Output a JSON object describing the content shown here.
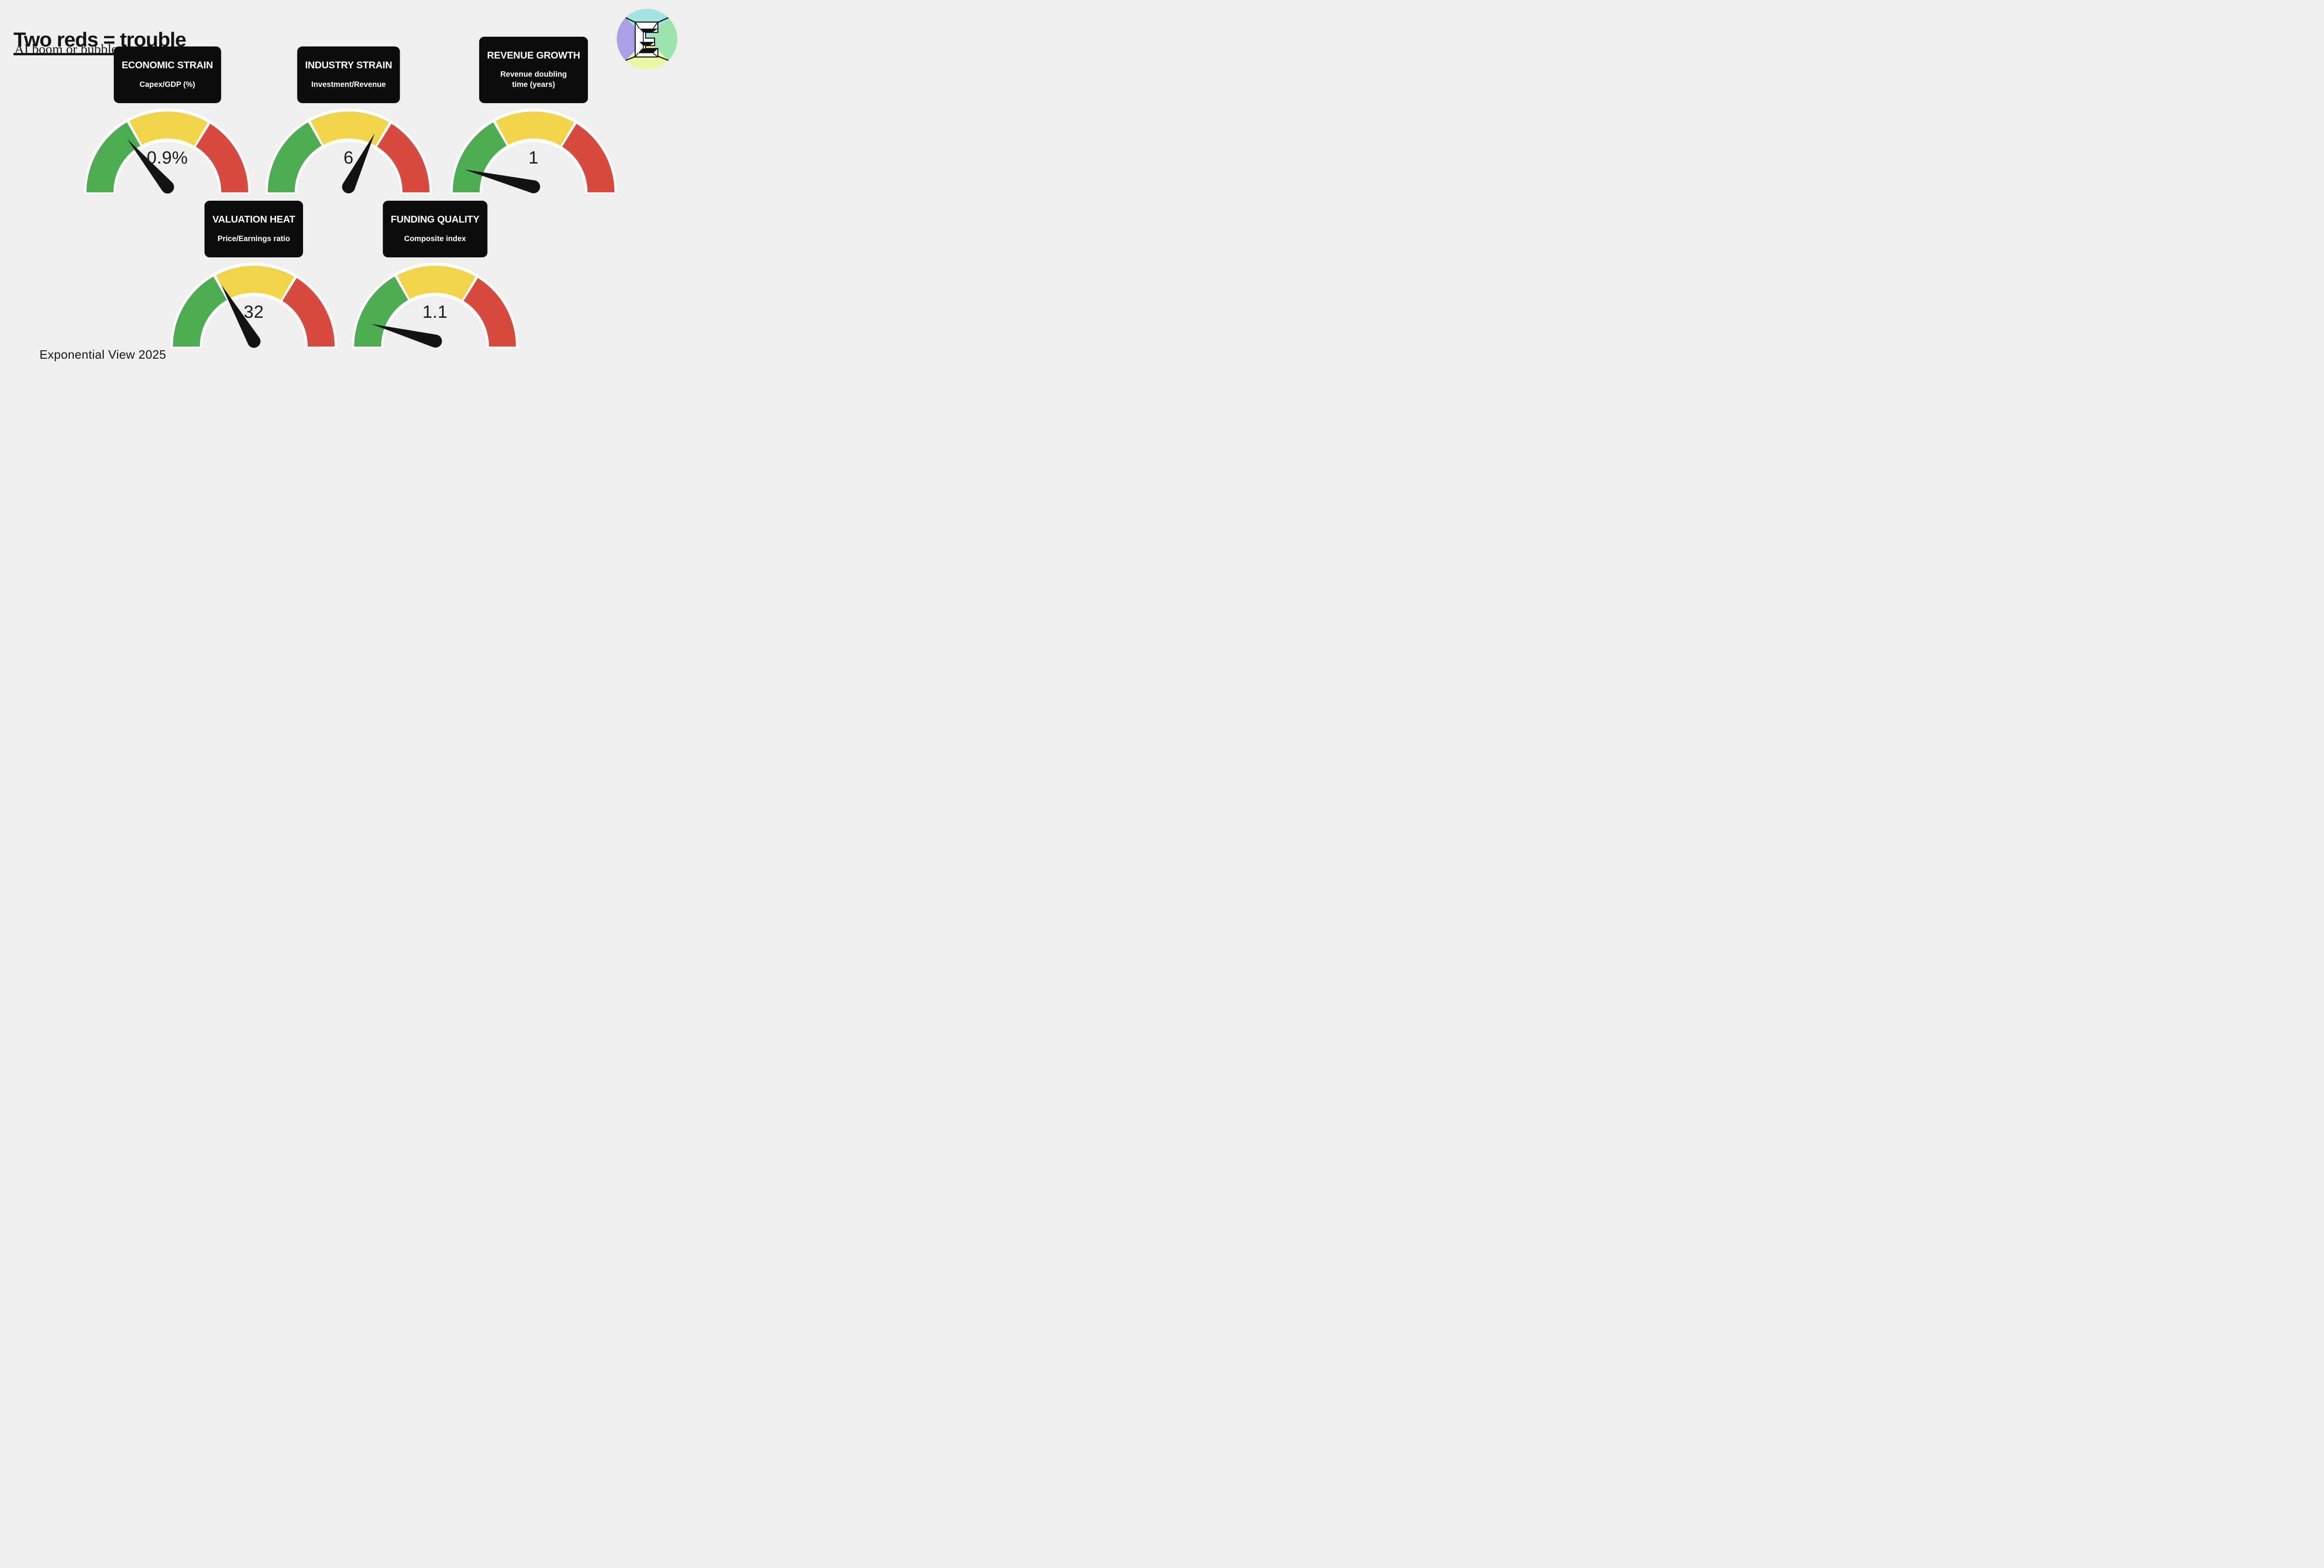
{
  "page": {
    "background": "#f0efed"
  },
  "header": {
    "title": "Two reds = trouble",
    "subtitle": "AI boom or bubble panel"
  },
  "footer": {
    "credit": "Exponential View 2025"
  },
  "logo": {
    "letter": "E",
    "sector_colors": {
      "top": "#a2e4e1",
      "left": "#ab9fe6",
      "right": "#9ce3ad",
      "bottom": "#ecf7a3"
    }
  },
  "gauge_style": {
    "zone_colors": {
      "green": "#4cad53",
      "yellow": "#f2d44b",
      "red": "#d8493f"
    },
    "outline": "#ffffff",
    "needle": "#131313",
    "label_box_bg": "#0c0c0c",
    "label_text": "#ffffff",
    "value_text": "#1b1b1b",
    "zones_deg": [
      {
        "color": "green",
        "from": 180,
        "to": 120
      },
      {
        "color": "yellow",
        "from": 118,
        "to": 60
      },
      {
        "color": "red",
        "from": 58,
        "to": 0
      }
    ]
  },
  "chart_data": [
    {
      "type": "gauge",
      "title": "ECONOMIC STRAIN",
      "subtitle": "Capex/GDP (%)",
      "value_label": "0.9%",
      "value": 0.9,
      "needle_zone": "green",
      "needle_angle_deg": 130,
      "needle_length": 134
    },
    {
      "type": "gauge",
      "title": "INDUSTRY STRAIN",
      "subtitle": "Investment/Revenue",
      "value_label": "6",
      "value": 6,
      "needle_zone": "yellow",
      "needle_angle_deg": 64,
      "needle_length": 128
    },
    {
      "type": "gauge",
      "title": "REVENUE GROWTH",
      "subtitle": "Revenue doubling\ntime (years)",
      "value_label": "1",
      "value": 1,
      "needle_zone": "green",
      "needle_angle_deg": 166,
      "needle_length": 154
    },
    {
      "type": "gauge",
      "title": "VALUATION HEAT",
      "subtitle": "Price/Earnings ratio",
      "value_label": "32",
      "value": 32,
      "needle_zone": "green",
      "needle_angle_deg": 120,
      "needle_length": 140
    },
    {
      "type": "gauge",
      "title": "FUNDING QUALITY",
      "subtitle": "Composite index",
      "value_label": "1.1",
      "value": 1.1,
      "needle_zone": "green",
      "needle_angle_deg": 165,
      "needle_length": 142
    }
  ]
}
